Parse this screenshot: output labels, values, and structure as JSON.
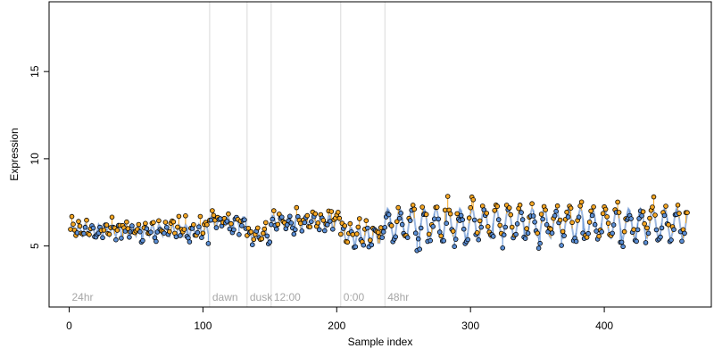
{
  "chart_data": {
    "type": "scatter",
    "title": "",
    "xlabel": "Sample index",
    "ylabel": "Expression",
    "xlim": [
      -15,
      480
    ],
    "ylim": [
      1.5,
      19
    ],
    "xticks": [
      0,
      100,
      200,
      300,
      400
    ],
    "yticks": [
      5,
      10,
      15
    ],
    "grid": false,
    "legend": "none",
    "colors": {
      "above_fit": "#f5a623",
      "below_fit": "#5b8fd6",
      "fit_line": "#9db8e0",
      "point_edge": "#000000",
      "annotation_line": "#d9d9d9",
      "annotation_text": "#a6a6a6",
      "axis": "#000000"
    },
    "annotations": [
      {
        "label": "24hr",
        "x": 0,
        "line": false
      },
      {
        "label": "dawn",
        "x": 105,
        "line": true
      },
      {
        "label": "dusk",
        "x": 133,
        "line": true
      },
      {
        "label": "12:00",
        "x": 151,
        "line": true
      },
      {
        "label": "0:00",
        "x": 203,
        "line": true
      },
      {
        "label": "48hr",
        "x": 236,
        "line": true
      }
    ],
    "segments": [
      {
        "label": "24hr",
        "start": 1,
        "end": 104,
        "base": 5.9,
        "amp": 0.35,
        "period": 5,
        "noise": 0.45
      },
      {
        "label": "dawn",
        "start": 105,
        "end": 132,
        "base": 6.4,
        "amp": 0.3,
        "period": 6,
        "noise": 0.35
      },
      {
        "label": "dusk",
        "start": 133,
        "end": 150,
        "base": 5.6,
        "amp": 0.3,
        "period": 6,
        "noise": 0.3
      },
      {
        "label": "12:00",
        "start": 151,
        "end": 202,
        "base": 6.4,
        "amp": 0.4,
        "period": 6,
        "noise": 0.4
      },
      {
        "label": "0:00",
        "start": 203,
        "end": 235,
        "base": 5.6,
        "amp": 0.5,
        "period": 6,
        "noise": 0.45
      },
      {
        "label": "48hr",
        "start": 236,
        "end": 462,
        "base": 6.3,
        "amp": 0.85,
        "period": 9,
        "noise": 0.55
      }
    ],
    "n_points": 462,
    "value_range": [
      3.7,
      8.1
    ]
  }
}
